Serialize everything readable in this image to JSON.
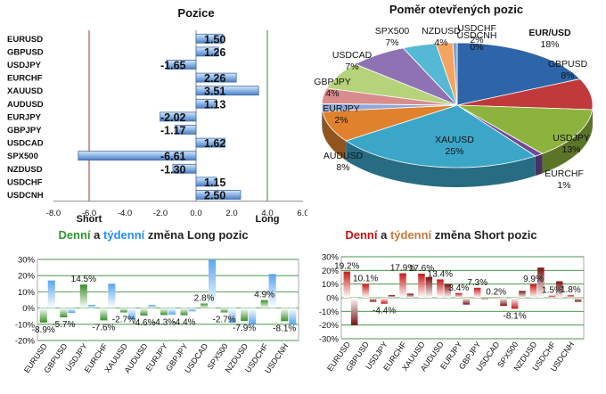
{
  "chart_data": [
    {
      "type": "bar",
      "orientation": "horizontal",
      "title": "Pozice",
      "categories": [
        "EURUSD",
        "GBPUSD",
        "USDJPY",
        "EURCHF",
        "XAUUSD",
        "AUDUSD",
        "EURJPY",
        "GBPJPY",
        "USDCAD",
        "SPX500",
        "NZDUSD",
        "USDCHF",
        "USDCNH"
      ],
      "values": [
        1.5,
        1.26,
        -1.65,
        2.26,
        3.51,
        1.13,
        -2.02,
        -1.17,
        1.62,
        -6.61,
        -1.3,
        1.15,
        2.5
      ],
      "value_labels": [
        "1.50",
        "1.26",
        "-1.65",
        "2.26",
        "3.51",
        "1.13",
        "-2.02",
        "-1.17",
        "1.62",
        "-6.61",
        "-1.30",
        "1.15",
        "2.50"
      ],
      "xlim": [
        -8,
        6
      ],
      "xticks": [
        "-8.0",
        "-6.0",
        "-4.0",
        "-2.0",
        "0.0",
        "2.0",
        "4.0",
        "6.0"
      ],
      "short_label": "Short",
      "long_label": "Long",
      "colors": {
        "bar": "#6f9fd8",
        "bar_edge": "#3c6ea8",
        "short_line": "#a83232",
        "long_line": "#2e8b2e"
      }
    },
    {
      "type": "pie",
      "title": "Poměr otevřených pozic",
      "slices": [
        {
          "label": "EUR/USD",
          "percent": "18%",
          "value": 18,
          "color": "#2e64a8"
        },
        {
          "label": "GBPUSD",
          "percent": "8%",
          "value": 8,
          "color": "#c0393b"
        },
        {
          "label": "USDJPY",
          "percent": "13%",
          "value": 13,
          "color": "#8db33e"
        },
        {
          "label": "EURCHF",
          "percent": "1%",
          "value": 1,
          "color": "#6e4a96"
        },
        {
          "label": "XAUUSD",
          "percent": "25%",
          "value": 25,
          "color": "#3ca6c8"
        },
        {
          "label": "AUDUSD",
          "percent": "8%",
          "value": 8,
          "color": "#e0812e"
        },
        {
          "label": "EURJPY",
          "percent": "2%",
          "value": 2,
          "color": "#8eaadb"
        },
        {
          "label": "GBPJPY",
          "percent": "4%",
          "value": 4,
          "color": "#d98c8c"
        },
        {
          "label": "USDCAD",
          "percent": "7%",
          "value": 7,
          "color": "#b6d27a"
        },
        {
          "label": "SPX500",
          "percent": "7%",
          "value": 7,
          "color": "#8e72b4"
        },
        {
          "label": "NZDUSD",
          "percent": "4%",
          "value": 4,
          "color": "#55b8d4"
        },
        {
          "label": "USDCHF",
          "percent": "2%",
          "value": 2,
          "color": "#f4a460"
        },
        {
          "label": "USDCNH",
          "percent": "0%",
          "value": 0.5,
          "color": "#7aa0cf"
        }
      ]
    },
    {
      "type": "bar",
      "title_parts": [
        "Denní",
        " a ",
        "týdenní",
        " změna Long pozic"
      ],
      "title_colors": [
        "#2e9a2e",
        "#222222",
        "#1e90ff",
        "#222222"
      ],
      "categories": [
        "EURUSD",
        "GBPUSD",
        "USDJPY",
        "EURCHF",
        "XAUUSD",
        "AUDUSD",
        "EURJPY",
        "GBPJPY",
        "USDCAD",
        "SPX500",
        "NZDUSD",
        "USDCHF",
        "USDCNH"
      ],
      "series": [
        {
          "name": "Denní",
          "values": [
            -8.9,
            -5.7,
            14.5,
            -7.6,
            -2.7,
            -4.6,
            -4.3,
            -4.4,
            2.8,
            -2.7,
            -7.9,
            4.9,
            -8.1
          ]
        },
        {
          "name": "Týdenní",
          "values": [
            17,
            -3,
            2,
            15,
            -7,
            2,
            -4,
            -2,
            30,
            -9,
            -10,
            21,
            -10
          ]
        }
      ],
      "labels": [
        {
          "category_index": 0,
          "text": "-8.9%"
        },
        {
          "category_index": 1,
          "text": "-5.7%"
        },
        {
          "category_index": 2,
          "text": "14.5%"
        },
        {
          "category_index": 3,
          "text": "-7.6%"
        },
        {
          "category_index": 4,
          "text": "-2.7%"
        },
        {
          "category_index": 5,
          "text": "-4.6%"
        },
        {
          "category_index": 6,
          "text": "-4.3%"
        },
        {
          "category_index": 7,
          "text": "-4.4%"
        },
        {
          "category_index": 8,
          "text": "2.8%"
        },
        {
          "category_index": 9,
          "text": "-2.7%"
        },
        {
          "category_index": 10,
          "text": "-7.9%"
        },
        {
          "category_index": 11,
          "text": "4.9%"
        },
        {
          "category_index": 12,
          "text": "-8.1%"
        }
      ],
      "ylim": [
        -20,
        30
      ],
      "yticks": [
        "-20%",
        "-10%",
        "0%",
        "10%",
        "20%",
        "30%"
      ],
      "colors": {
        "daily": "#3a8f2a",
        "weekly": "#5aa6ee"
      }
    },
    {
      "type": "bar",
      "title_parts": [
        "Denní",
        " a ",
        "týdenní",
        " změna Short pozic"
      ],
      "title_colors": [
        "#cc1111",
        "#222222",
        "#c8783a",
        "#222222"
      ],
      "categories": [
        "EURUSD",
        "GBPUSD",
        "USDJPY",
        "EURCHF",
        "XAUUSD",
        "AUDUSD",
        "EURJPY",
        "GBPJPY",
        "USDCAD",
        "SPX500",
        "NZDUSD",
        "USDCHF",
        "USDCNH"
      ],
      "series": [
        {
          "name": "Denní",
          "values": [
            19.2,
            10.1,
            -4.4,
            17.9,
            17.6,
            13.4,
            3.4,
            7.3,
            0.2,
            -8.1,
            9.9,
            1.5,
            1.8
          ]
        },
        {
          "name": "Týdenní",
          "values": [
            -20,
            -3,
            2,
            3,
            15,
            10,
            -5,
            -1,
            -6,
            5,
            22,
            12,
            -3
          ]
        }
      ],
      "labels": [
        {
          "category_index": 0,
          "text": "19.2%"
        },
        {
          "category_index": 1,
          "text": "10.1%"
        },
        {
          "category_index": 2,
          "text": "-4.4%"
        },
        {
          "category_index": 3,
          "text": "17.9%"
        },
        {
          "category_index": 4,
          "text": "17.6%"
        },
        {
          "category_index": 5,
          "text": "13.4%"
        },
        {
          "category_index": 6,
          "text": "3.4%"
        },
        {
          "category_index": 7,
          "text": "7.3%"
        },
        {
          "category_index": 8,
          "text": "0.2%"
        },
        {
          "category_index": 9,
          "text": "-8.1%"
        },
        {
          "category_index": 10,
          "text": "9.9%"
        },
        {
          "category_index": 11,
          "text": "1.5%"
        },
        {
          "category_index": 12,
          "text": "1.8%"
        }
      ],
      "ylim": [
        -30,
        30
      ],
      "yticks": [
        "-30%",
        "-20%",
        "-10%",
        "0%",
        "10%",
        "20%",
        "30%"
      ],
      "colors": {
        "daily": "#c81818",
        "weekly": "#7a1010"
      }
    }
  ]
}
